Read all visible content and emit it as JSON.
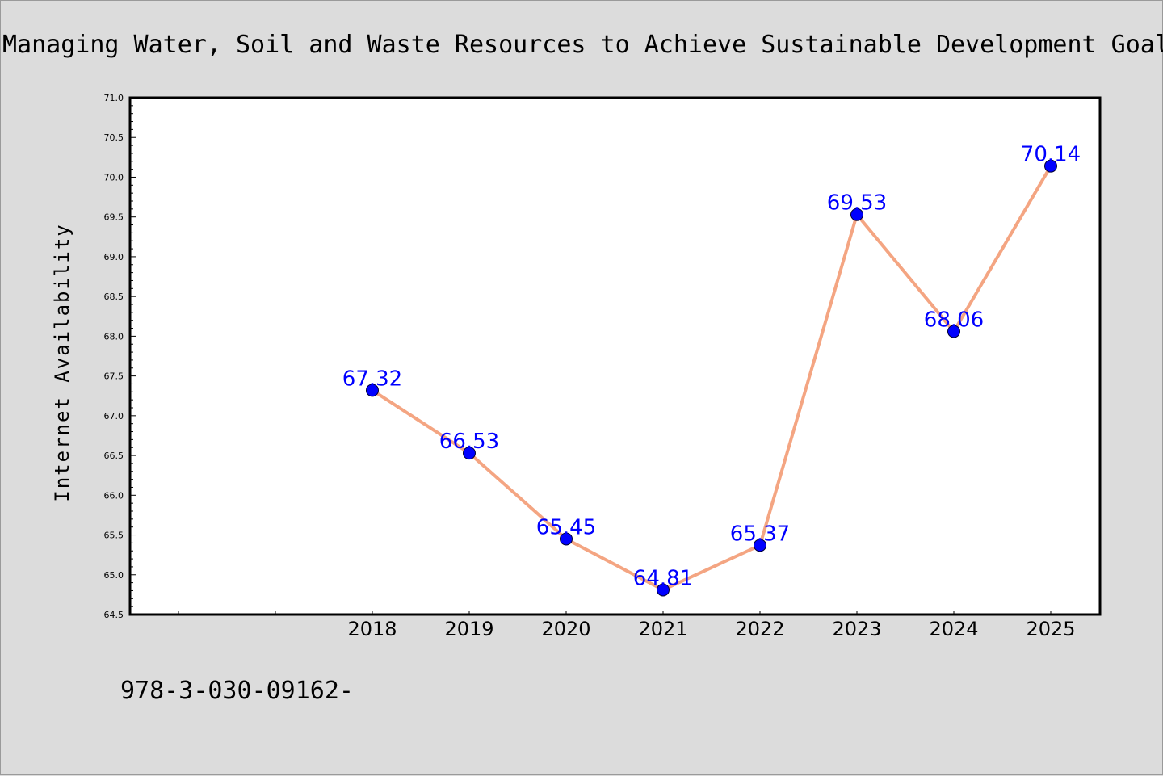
{
  "chart_data": {
    "type": "line",
    "title": "Managing Water, Soil and Waste Resources to Achieve Sustainable Development Goal",
    "xlabel": "",
    "ylabel": "Internet Availability",
    "categories": [
      "2018",
      "2019",
      "2020",
      "2021",
      "2022",
      "2023",
      "2024",
      "2025"
    ],
    "values": [
      67.32,
      66.53,
      65.45,
      64.81,
      65.37,
      69.53,
      68.06,
      70.14
    ],
    "data_labels": [
      "67.32",
      "66.53",
      "65.45",
      "64.81",
      "65.37",
      "69.53",
      "68.06",
      "70.14"
    ],
    "ylim": [
      64.5,
      71.0
    ],
    "yticks": [
      "64.5",
      "65.0",
      "65.5",
      "66.0",
      "66.5",
      "67.0",
      "67.5",
      "68.0",
      "68.5",
      "69.0",
      "69.5",
      "70.0",
      "70.5",
      "71.0"
    ],
    "grid": false,
    "legend": "none",
    "line_color": "#f4a582",
    "marker_color": "#0000ff",
    "label_color": "#0000ff"
  },
  "footer": {
    "text": "978-3-030-09162-"
  }
}
